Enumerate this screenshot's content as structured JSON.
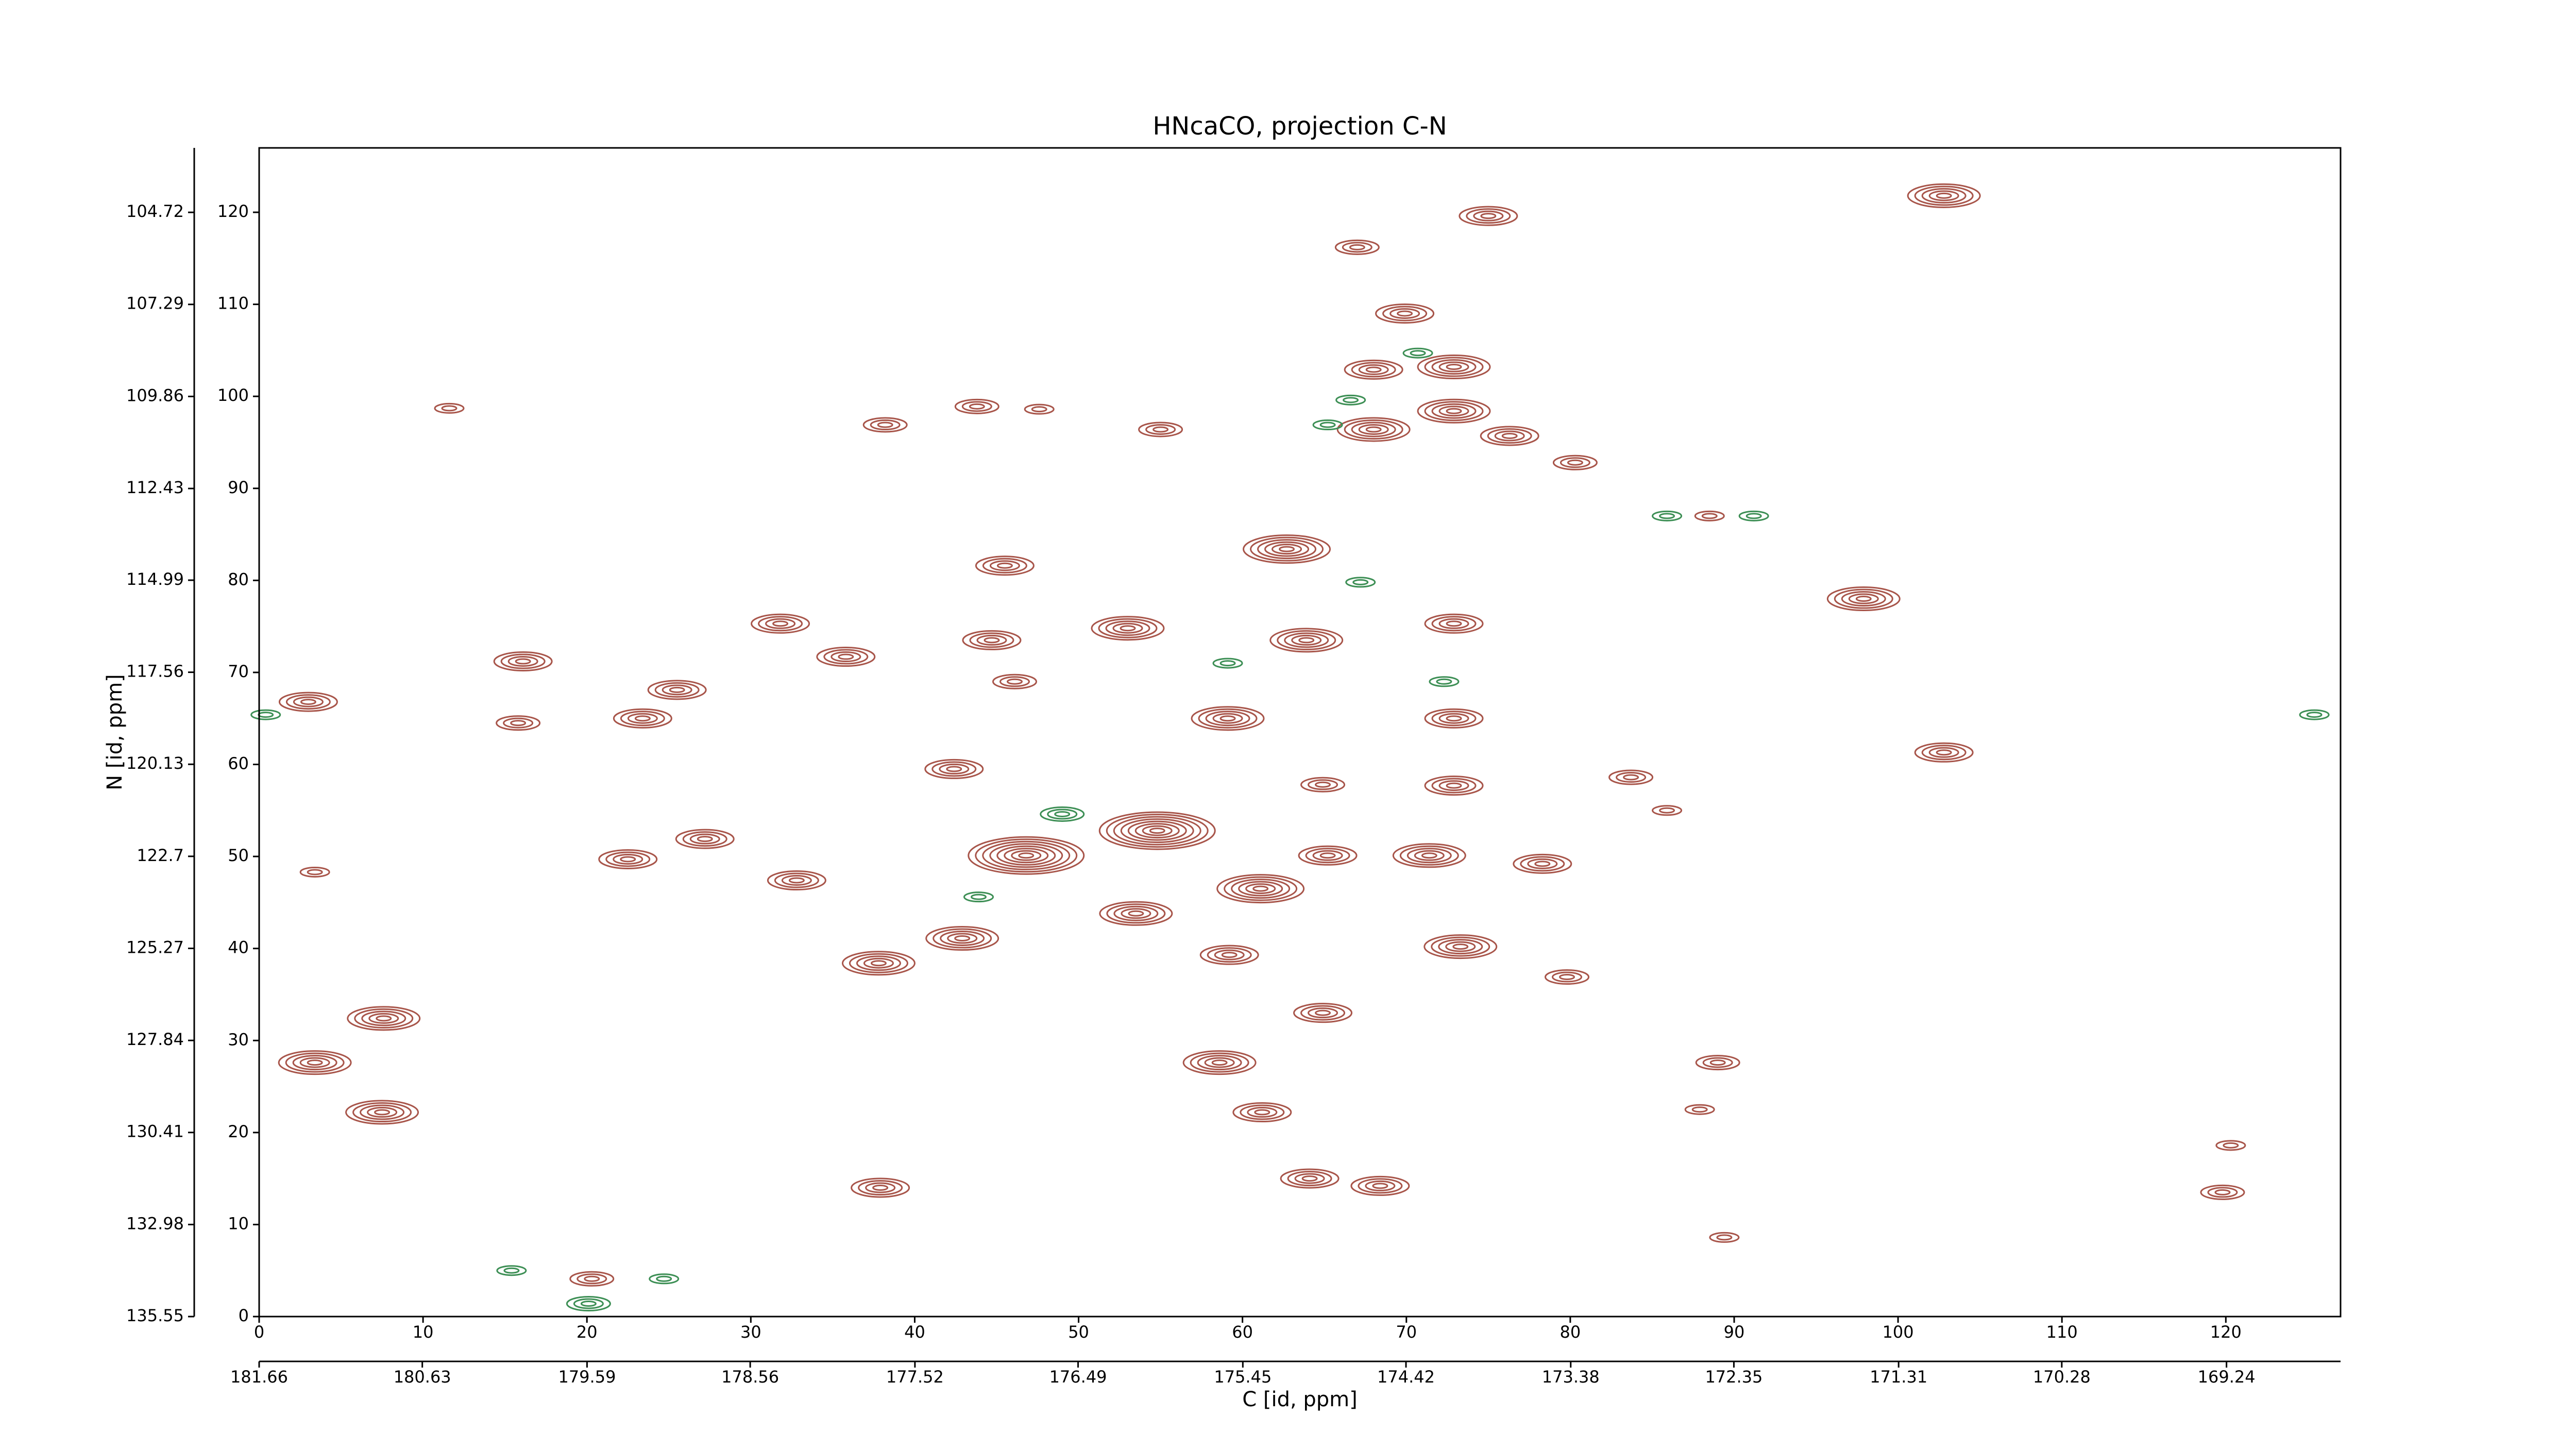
{
  "chart_data": {
    "type": "contour",
    "title": "HNcaCO, projection C-N",
    "x2label": "C [id, ppm]",
    "y2label": "N [id, ppm]",
    "xlim": [
      0,
      127
    ],
    "ylim": [
      0,
      127
    ],
    "xticks": [
      0,
      10,
      20,
      30,
      40,
      50,
      60,
      70,
      80,
      90,
      100,
      110,
      120
    ],
    "yticks": [
      0,
      10,
      20,
      30,
      40,
      50,
      60,
      70,
      80,
      90,
      100,
      110,
      120
    ],
    "x2lim": [
      181.66,
      168.52
    ],
    "x2ticks": [
      181.66,
      180.63,
      179.59,
      178.56,
      177.52,
      176.49,
      175.45,
      174.42,
      173.38,
      172.35,
      171.31,
      170.28,
      169.24
    ],
    "y2lim": [
      135.55,
      102.92
    ],
    "y2ticks": [
      135.55,
      132.98,
      130.41,
      127.84,
      125.27,
      122.7,
      120.13,
      117.56,
      114.99,
      112.43,
      109.86,
      107.29,
      104.72
    ],
    "series": [
      {
        "color": "#a8554a",
        "x": [
          102.8,
          75,
          67,
          69.9,
          72.9,
          68,
          72.9,
          68,
          76.3,
          55,
          43.8,
          47.6,
          38.2,
          11.6,
          80.3,
          88.5,
          62.7,
          45.5,
          97.9,
          63.9,
          31.8,
          35.8,
          44.7,
          53,
          72.9,
          16.1,
          3,
          25.5,
          46.1,
          59.1,
          72.9,
          15.8,
          23.4,
          102.8,
          83.7,
          72.9,
          64.9,
          42.4,
          46.8,
          54.8,
          61.1,
          65.2,
          71.4,
          78.3,
          27.2,
          22.5,
          32.8,
          53.5,
          42.9,
          37.8,
          59.2,
          73.3,
          64.9,
          58.6,
          79.8,
          7.6,
          3.4,
          7.5,
          61.2,
          89,
          87.9,
          64.1,
          68.4,
          37.9,
          20.3,
          119.8,
          120.3,
          89.4,
          3.4,
          85.9
        ],
        "values": [
          121.8,
          119.6,
          116.2,
          109,
          103.2,
          102.9,
          98.4,
          96.4,
          95.7,
          96.4,
          98.9,
          98.6,
          96.9,
          98.7,
          92.8,
          87,
          83.4,
          81.6,
          78,
          73.5,
          75.3,
          71.7,
          73.5,
          74.8,
          75.3,
          71.2,
          66.8,
          68.1,
          69,
          65,
          65,
          64.5,
          65,
          61.3,
          58.6,
          57.7,
          57.8,
          59.5,
          50.1,
          52.8,
          46.5,
          50.1,
          50.1,
          49.2,
          51.9,
          49.7,
          47.4,
          43.8,
          41.1,
          38.4,
          39.3,
          40.2,
          33,
          27.6,
          36.9,
          32.4,
          27.6,
          22.2,
          22.2,
          27.6,
          22.5,
          15,
          14.2,
          14,
          4.1,
          13.5,
          18.6,
          8.6,
          48.3,
          55
        ],
        "levels": [
          5,
          4,
          3,
          4,
          5,
          4,
          5,
          5,
          4,
          3,
          3,
          2,
          3,
          2,
          3,
          2,
          6,
          4,
          5,
          5,
          4,
          4,
          4,
          5,
          4,
          4,
          4,
          4,
          3,
          5,
          4,
          3,
          4,
          4,
          3,
          4,
          3,
          4,
          8,
          8,
          6,
          4,
          5,
          4,
          4,
          4,
          4,
          5,
          5,
          5,
          4,
          5,
          4,
          5,
          3,
          5,
          5,
          5,
          4,
          3,
          2,
          4,
          4,
          4,
          3,
          3,
          2,
          2,
          2,
          2
        ]
      },
      {
        "color": "#3d8f55",
        "x": [
          85.9,
          91.2,
          67.2,
          59.1,
          49,
          43.9,
          20.1,
          24.7,
          15.4,
          125.4,
          0.4,
          72.3,
          65.2,
          66.6,
          70.7
        ],
        "values": [
          87,
          87,
          79.8,
          71,
          54.6,
          45.6,
          1.4,
          4.1,
          5,
          65.4,
          65.4,
          69,
          96.9,
          99.6,
          104.7
        ],
        "levels": [
          2,
          2,
          2,
          2,
          3,
          2,
          3,
          2,
          2,
          2,
          2,
          2,
          2,
          2,
          2
        ]
      }
    ]
  }
}
